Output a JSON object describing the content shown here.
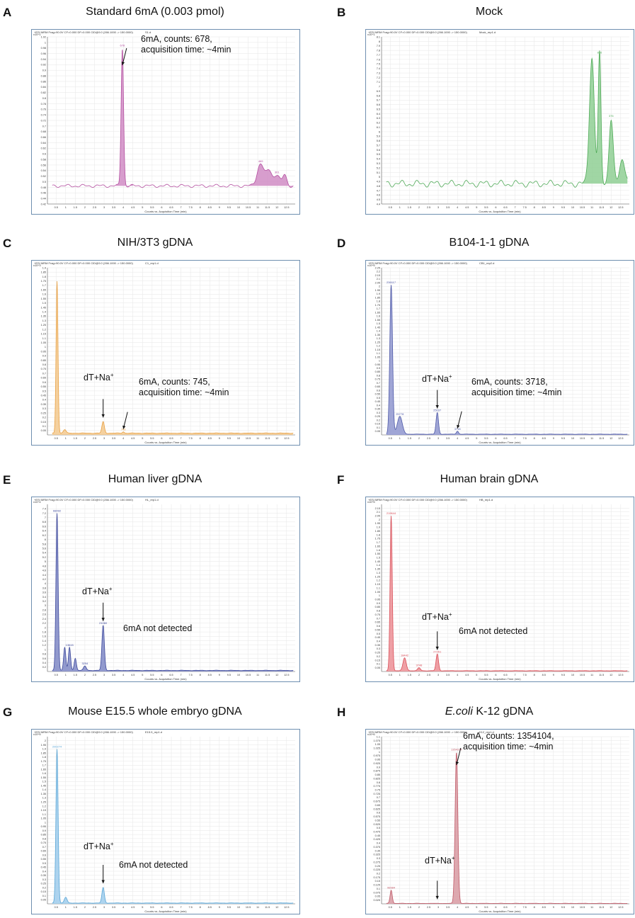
{
  "header_text": "+ESI MRM Frag=90.0V CF=0.000 DF=0.000 CID@9.0 (266.1000 -> 150.0000)",
  "x_axis_label": "Counts vs. Acquisition Time (min)",
  "x_ticks": [
    "0.5",
    "1",
    "1.5",
    "2",
    "2.5",
    "3",
    "3.5",
    "4",
    "4.5",
    "5",
    "5.5",
    "6",
    "6.5",
    "7",
    "7.5",
    "8",
    "8.5",
    "9",
    "9.5",
    "10",
    "10.5",
    "11",
    "11.5",
    "12",
    "12.5"
  ],
  "chart_data": [
    {
      "letter": "A",
      "title": "Standard 6mA (0.003 pmol)",
      "file": "S1.d",
      "type": "area",
      "color": "#b44fa0",
      "fill": "#d08cc4",
      "y_scale_exp": "x10^1",
      "ylim": [
        0.42,
        1.02
      ],
      "y_ticks": [
        "0.42",
        "0.44",
        "0.46",
        "0.48",
        "0.5",
        "0.52",
        "0.54",
        "0.56",
        "0.58",
        "0.6",
        "0.62",
        "0.64",
        "0.66",
        "0.68",
        "0.7",
        "0.72",
        "0.74",
        "0.76",
        "0.78",
        "0.8",
        "0.82",
        "0.84",
        "0.86",
        "0.88",
        "0.9",
        "0.92",
        "0.94",
        "0.96",
        "0.98",
        "1",
        "1.02"
      ],
      "baseline": 0.485,
      "baseline_amp": 0.006,
      "peaks": [
        {
          "x": 3.95,
          "y": 0.98,
          "w": 0.09,
          "label": "678"
        },
        {
          "x": 11.15,
          "y": 0.565,
          "w": 0.25,
          "label": "469"
        },
        {
          "x": 11.6,
          "y": 0.54,
          "w": 0.2,
          "label": ""
        },
        {
          "x": 12.0,
          "y": 0.525,
          "w": 0.2,
          "label": "301"
        },
        {
          "x": 12.4,
          "y": 0.525,
          "w": 0.15,
          "label": ""
        }
      ],
      "fill_ranges": [
        [
          3.6,
          4.5
        ],
        [
          10.4,
          12.9
        ]
      ],
      "annotations": [
        {
          "lines": [
            "6mA, counts: 678,",
            "acquisition time: ~4min"
          ],
          "arrow_to_x": 3.95
        }
      ]
    },
    {
      "letter": "B",
      "title": "Mock",
      "file": "Mock_rep1.d",
      "type": "area",
      "color": "#4faa57",
      "fill": "#8fcf94",
      "y_scale_exp": "x10^1",
      "ylim": [
        4.4,
        8.1
      ],
      "y_ticks": [
        "4.4",
        "4.5",
        "4.6",
        "4.7",
        "4.8",
        "4.9",
        "5",
        "5.1",
        "5.2",
        "5.3",
        "5.4",
        "5.5",
        "5.6",
        "5.7",
        "5.8",
        "5.9",
        "6",
        "6.1",
        "6.2",
        "6.3",
        "6.4",
        "6.5",
        "6.6",
        "6.7",
        "6.8",
        "6.9",
        "7",
        "7.1",
        "7.2",
        "7.3",
        "7.4",
        "7.5",
        "7.6",
        "7.7",
        "7.8",
        "7.9",
        "8",
        "8.1"
      ],
      "baseline": 4.85,
      "baseline_amp": 0.08,
      "peaks": [
        {
          "x": 11.0,
          "y": 7.65,
          "w": 0.18,
          "label": ""
        },
        {
          "x": 11.4,
          "y": 7.7,
          "w": 0.1,
          "label": "876"
        },
        {
          "x": 12.0,
          "y": 6.3,
          "w": 0.15,
          "label": "376"
        },
        {
          "x": 12.6,
          "y": 5.4,
          "w": 0.2,
          "label": ""
        }
      ],
      "fill_ranges": [
        [
          10.5,
          12.9
        ]
      ],
      "annotations": []
    },
    {
      "letter": "C",
      "title": "NIH/3T3 gDNA",
      "file": "C1_rep1.d",
      "type": "area",
      "color": "#e8a043",
      "fill": "#f3c98e",
      "y_scale_exp": "x10^3",
      "ylim": [
        0,
        1.9
      ],
      "y_ticks": [
        "0.05",
        "0.1",
        "0.15",
        "0.2",
        "0.25",
        "0.3",
        "0.35",
        "0.4",
        "0.45",
        "0.5",
        "0.55",
        "0.6",
        "0.65",
        "0.7",
        "0.75",
        "0.8",
        "0.85",
        "0.9",
        "0.95",
        "1",
        "1.05",
        "1.1",
        "1.15",
        "1.2",
        "1.25",
        "1.3",
        "1.35",
        "1.4",
        "1.45",
        "1.5",
        "1.55",
        "1.6",
        "1.65",
        "1.7",
        "1.75",
        "1.8",
        "1.85",
        "1.9"
      ],
      "baseline": 0.02,
      "baseline_amp": 0.003,
      "peaks": [
        {
          "x": 0.55,
          "y": 1.75,
          "w": 0.07,
          "label": ""
        },
        {
          "x": 0.95,
          "y": 0.06,
          "w": 0.1,
          "label": ""
        },
        {
          "x": 2.95,
          "y": 0.15,
          "w": 0.09,
          "label": ""
        },
        {
          "x": 4.0,
          "y": 0.035,
          "w": 0.07,
          "label": "745"
        }
      ],
      "fill_ranges": [],
      "annotations": [
        {
          "lines": [
            "dT+Na+"
          ],
          "arrow_to_x": 2.95
        },
        {
          "lines": [
            "6mA, counts: 745,",
            "acquisition time: ~4min"
          ],
          "arrow_to_x": 4.0
        }
      ]
    },
    {
      "letter": "D",
      "title": "B104-1-1 gDNA",
      "file": "CB1_rep2.d",
      "type": "area",
      "color": "#4f5aa8",
      "fill": "#8f97cf",
      "y_scale_exp": "x10^5",
      "ylim": [
        0,
        2.25
      ],
      "y_ticks": [
        "0.05",
        "0.1",
        "0.15",
        "0.2",
        "0.25",
        "0.3",
        "0.35",
        "0.4",
        "0.45",
        "0.5",
        "0.55",
        "0.6",
        "0.65",
        "0.7",
        "0.75",
        "0.8",
        "0.85",
        "0.9",
        "0.95",
        "1",
        "1.05",
        "1.1",
        "1.15",
        "1.2",
        "1.25",
        "1.3",
        "1.35",
        "1.4",
        "1.45",
        "1.5",
        "1.55",
        "1.6",
        "1.65",
        "1.7",
        "1.75",
        "1.8",
        "1.85",
        "1.9",
        "1.95",
        "2",
        "2.05",
        "2.1",
        "2.15",
        "2.2",
        "2.25"
      ],
      "baseline": 0.01,
      "baseline_amp": 0.002,
      "peaks": [
        {
          "x": 0.55,
          "y": 2.02,
          "w": 0.1,
          "label": "236117"
        },
        {
          "x": 1.0,
          "y": 0.25,
          "w": 0.18,
          "label": "25778"
        },
        {
          "x": 2.95,
          "y": 0.3,
          "w": 0.09,
          "label": "25037"
        },
        {
          "x": 4.0,
          "y": 0.05,
          "w": 0.08,
          "label": "3718"
        }
      ],
      "fill_ranges": [],
      "annotations": [
        {
          "lines": [
            "dT+Na+"
          ],
          "arrow_to_x": 2.95
        },
        {
          "lines": [
            "6mA, counts: 3718,",
            "acquisition time: ~4min"
          ],
          "arrow_to_x": 4.0
        }
      ]
    },
    {
      "letter": "E",
      "title": "Human liver gDNA",
      "file": "HL_rep1.d",
      "type": "area",
      "color": "#3f4a9c",
      "fill": "#7f88c6",
      "y_scale_exp": "x10^4",
      "ylim": [
        0,
        7.6
      ],
      "y_ticks": [
        "0.2",
        "0.4",
        "0.6",
        "0.8",
        "1",
        "1.2",
        "1.4",
        "1.6",
        "1.8",
        "2",
        "2.2",
        "2.4",
        "2.6",
        "2.8",
        "3",
        "3.2",
        "3.4",
        "3.6",
        "3.8",
        "4",
        "4.2",
        "4.4",
        "4.6",
        "4.8",
        "5",
        "5.2",
        "5.4",
        "5.6",
        "5.8",
        "6",
        "6.2",
        "6.4",
        "6.6",
        "6.8",
        "7",
        "7.2",
        "7.4"
      ],
      "baseline": 0.05,
      "baseline_amp": 0.01,
      "peaks": [
        {
          "x": 0.55,
          "y": 7.2,
          "w": 0.08,
          "label": "68092"
        },
        {
          "x": 0.95,
          "y": 1.1,
          "w": 0.08,
          "label": ""
        },
        {
          "x": 1.2,
          "y": 1.1,
          "w": 0.08,
          "label": "13615"
        },
        {
          "x": 1.5,
          "y": 0.6,
          "w": 0.08,
          "label": ""
        },
        {
          "x": 2.0,
          "y": 0.25,
          "w": 0.1,
          "label": "3254"
        },
        {
          "x": 2.95,
          "y": 2.1,
          "w": 0.09,
          "label": "21060"
        }
      ],
      "fill_ranges": [],
      "annotations": [
        {
          "lines": [
            "dT+Na+"
          ],
          "arrow_to_x": 2.95
        },
        {
          "lines": [
            "6mA not detected"
          ],
          "arrow_to_x": null
        }
      ]
    },
    {
      "letter": "F",
      "title": "Human brain gDNA",
      "file": "HB_rep1.d",
      "type": "area",
      "color": "#d9505a",
      "fill": "#ec8f95",
      "y_scale_exp": "x10^5",
      "ylim": [
        0,
        2.2
      ],
      "y_ticks": [
        "0.05",
        "0.1",
        "0.15",
        "0.2",
        "0.25",
        "0.3",
        "0.35",
        "0.4",
        "0.45",
        "0.5",
        "0.55",
        "0.6",
        "0.65",
        "0.7",
        "0.75",
        "0.8",
        "0.85",
        "0.9",
        "0.95",
        "1",
        "1.05",
        "1.1",
        "1.15",
        "1.2",
        "1.25",
        "1.3",
        "1.35",
        "1.4",
        "1.45",
        "1.5",
        "1.55",
        "1.6",
        "1.65",
        "1.7",
        "1.75",
        "1.8",
        "1.85",
        "1.9",
        "1.95",
        "2",
        "2.05",
        "2.1",
        "2.15"
      ],
      "baseline": 0.01,
      "baseline_amp": 0.002,
      "peaks": [
        {
          "x": 0.55,
          "y": 2.05,
          "w": 0.08,
          "label": "219644"
        },
        {
          "x": 1.25,
          "y": 0.18,
          "w": 0.12,
          "label": "18442"
        },
        {
          "x": 2.0,
          "y": 0.05,
          "w": 0.1,
          "label": "3748"
        },
        {
          "x": 2.95,
          "y": 0.23,
          "w": 0.09,
          "label": "27261"
        }
      ],
      "fill_ranges": [],
      "annotations": [
        {
          "lines": [
            "dT+Na+"
          ],
          "arrow_to_x": 2.95
        },
        {
          "lines": [
            "6mA not detected"
          ],
          "arrow_to_x": null
        }
      ]
    },
    {
      "letter": "G",
      "title": "Mouse E15.5 whole embryo gDNA",
      "file": "E15.5_rep1.d",
      "type": "area",
      "color": "#5aa6d6",
      "fill": "#9fcdec",
      "y_scale_exp": "x10^5",
      "ylim": [
        0,
        2.05
      ],
      "y_ticks": [
        "0.05",
        "0.1",
        "0.15",
        "0.2",
        "0.25",
        "0.3",
        "0.35",
        "0.4",
        "0.45",
        "0.5",
        "0.55",
        "0.6",
        "0.65",
        "0.7",
        "0.75",
        "0.8",
        "0.85",
        "0.9",
        "0.95",
        "1",
        "1.05",
        "1.1",
        "1.15",
        "1.2",
        "1.25",
        "1.3",
        "1.35",
        "1.4",
        "1.45",
        "1.5",
        "1.55",
        "1.6",
        "1.65",
        "1.7",
        "1.75",
        "1.8",
        "1.85",
        "1.9",
        "1.95",
        "2"
      ],
      "baseline": 0.01,
      "baseline_amp": 0.002,
      "peaks": [
        {
          "x": 0.55,
          "y": 1.9,
          "w": 0.08,
          "label": "200274"
        },
        {
          "x": 1.0,
          "y": 0.08,
          "w": 0.1,
          "label": ""
        },
        {
          "x": 2.95,
          "y": 0.2,
          "w": 0.09,
          "label": ""
        }
      ],
      "fill_ranges": [],
      "annotations": [
        {
          "lines": [
            "dT+Na+"
          ],
          "arrow_to_x": 2.95
        },
        {
          "lines": [
            "6mA not detected"
          ],
          "arrow_to_x": null
        }
      ]
    },
    {
      "letter": "H",
      "title_italic": "E.coli",
      "title": " K-12 gDNA",
      "file": "K12_rep1.d",
      "type": "area",
      "color": "#c05a68",
      "fill": "#d89aa2",
      "y_scale_exp": "x10^6",
      "ylim": [
        0,
        1.1
      ],
      "y_ticks": [
        "0.025",
        "0.05",
        "0.075",
        "0.1",
        "0.125",
        "0.15",
        "0.175",
        "0.2",
        "0.225",
        "0.25",
        "0.275",
        "0.3",
        "0.325",
        "0.35",
        "0.375",
        "0.4",
        "0.425",
        "0.45",
        "0.475",
        "0.5",
        "0.525",
        "0.55",
        "0.575",
        "0.6",
        "0.625",
        "0.65",
        "0.675",
        "0.7",
        "0.725",
        "0.75",
        "0.775",
        "0.8",
        "0.825",
        "0.85",
        "0.875",
        "0.9",
        "0.925",
        "0.95",
        "0.975",
        "1",
        "1.025",
        "1.05",
        "1.075",
        "1.1"
      ],
      "baseline": 0.003,
      "baseline_amp": 0.001,
      "peaks": [
        {
          "x": 0.55,
          "y": 0.09,
          "w": 0.08,
          "label": "98984"
        },
        {
          "x": 3.95,
          "y": 1.0,
          "w": 0.1,
          "label": "1354104"
        }
      ],
      "fill_ranges": [],
      "annotations": [
        {
          "lines": [
            "6mA, counts: 1354104,",
            "acquisition time: ~4min"
          ],
          "arrow_to_x": 3.95
        },
        {
          "lines": [
            "dT+Na+"
          ],
          "arrow_to_x": 2.95
        }
      ]
    }
  ]
}
